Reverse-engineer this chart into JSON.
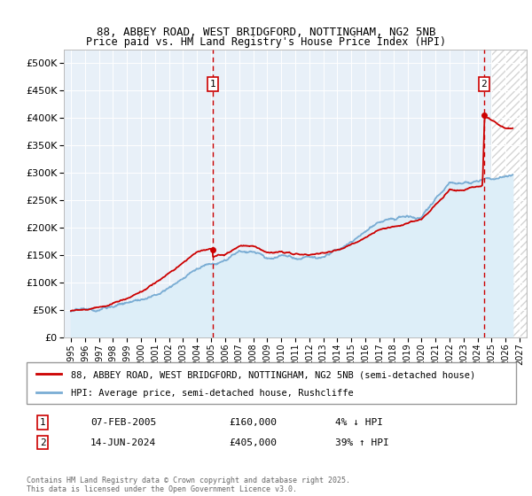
{
  "title1": "88, ABBEY ROAD, WEST BRIDGFORD, NOTTINGHAM, NG2 5NB",
  "title2": "Price paid vs. HM Land Registry's House Price Index (HPI)",
  "legend_line1": "88, ABBEY ROAD, WEST BRIDGFORD, NOTTINGHAM, NG2 5NB (semi-detached house)",
  "legend_line2": "HPI: Average price, semi-detached house, Rushcliffe",
  "annotation1_label": "1",
  "annotation1_date": "07-FEB-2005",
  "annotation1_price": "£160,000",
  "annotation1_hpi": "4% ↓ HPI",
  "annotation2_label": "2",
  "annotation2_date": "14-JUN-2024",
  "annotation2_price": "£405,000",
  "annotation2_hpi": "39% ↑ HPI",
  "footer": "Contains HM Land Registry data © Crown copyright and database right 2025.\nThis data is licensed under the Open Government Licence v3.0.",
  "property_color": "#cc0000",
  "hpi_color": "#7aadd4",
  "hpi_fill_color": "#ddeef8",
  "background_color": "#e8f0f8",
  "ylim": [
    0,
    525000
  ],
  "yticks": [
    0,
    50000,
    100000,
    150000,
    200000,
    250000,
    300000,
    350000,
    400000,
    450000,
    500000
  ],
  "xlim_start": 1994.5,
  "xlim_end": 2027.5,
  "sale1_x": 2005.1,
  "sale1_y": 160000,
  "sale2_x": 2024.45,
  "sale2_y": 405000,
  "future_x": 2025.0
}
